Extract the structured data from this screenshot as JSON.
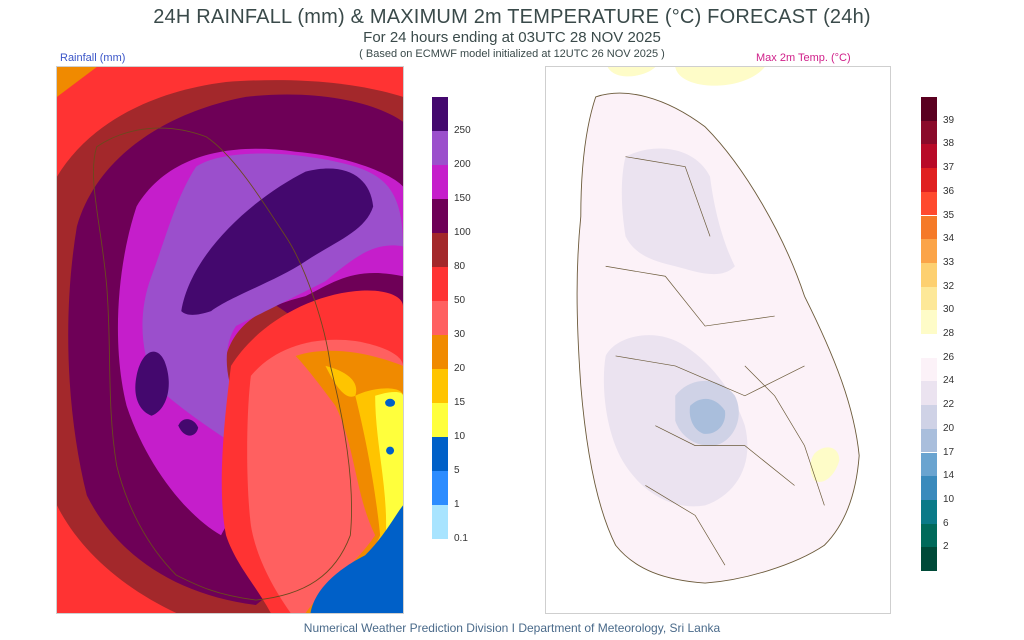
{
  "header": {
    "title": "24H RAINFALL (mm) & MAXIMUM 2m TEMPERATURE (°C) FORECAST (24h)",
    "subtitle": "For 24 hours ending at 03UTC 28 NOV 2025",
    "model_note": "( Based on ECMWF model initialized at 12UTC 26 NOV 2025 )"
  },
  "panels": {
    "rainfall": {
      "label": "Rainfall (mm)",
      "legend": {
        "ticks": [
          "250",
          "200",
          "150",
          "100",
          "80",
          "50",
          "30",
          "20",
          "15",
          "10",
          "5",
          "1",
          "0.1"
        ],
        "colors": [
          "#44086e",
          "#9b4fcc",
          "#c51ecb",
          "#6e0057",
          "#a3282b",
          "#ff3333",
          "#ff6060",
          "#f08a00",
          "#ffc400",
          "#ffff3c",
          "#0060c8",
          "#2c8cff",
          "#a8e4ff"
        ]
      }
    },
    "temperature": {
      "label": "Max 2m Temp. (°C)",
      "legend": {
        "ticks": [
          "39",
          "38",
          "37",
          "36",
          "35",
          "34",
          "33",
          "32",
          "30",
          "28",
          "26",
          "24",
          "22",
          "20",
          "17",
          "14",
          "10",
          "6",
          "2"
        ],
        "colors": [
          "#5a0020",
          "#8a0a2a",
          "#b80a28",
          "#e02020",
          "#ff4a2e",
          "#f57a28",
          "#fba448",
          "#fdd070",
          "#fde898",
          "#fefcc8",
          "#ffffff",
          "#fcf2f8",
          "#ebe3f0",
          "#cfd2e6",
          "#a9bedc",
          "#6aa4d0",
          "#3a8abc",
          "#0a7a88",
          "#006a5a",
          "#004a38"
        ]
      }
    }
  },
  "footer": "Numerical Weather Prediction Division I Department of Meteorology, Sri Lanka"
}
